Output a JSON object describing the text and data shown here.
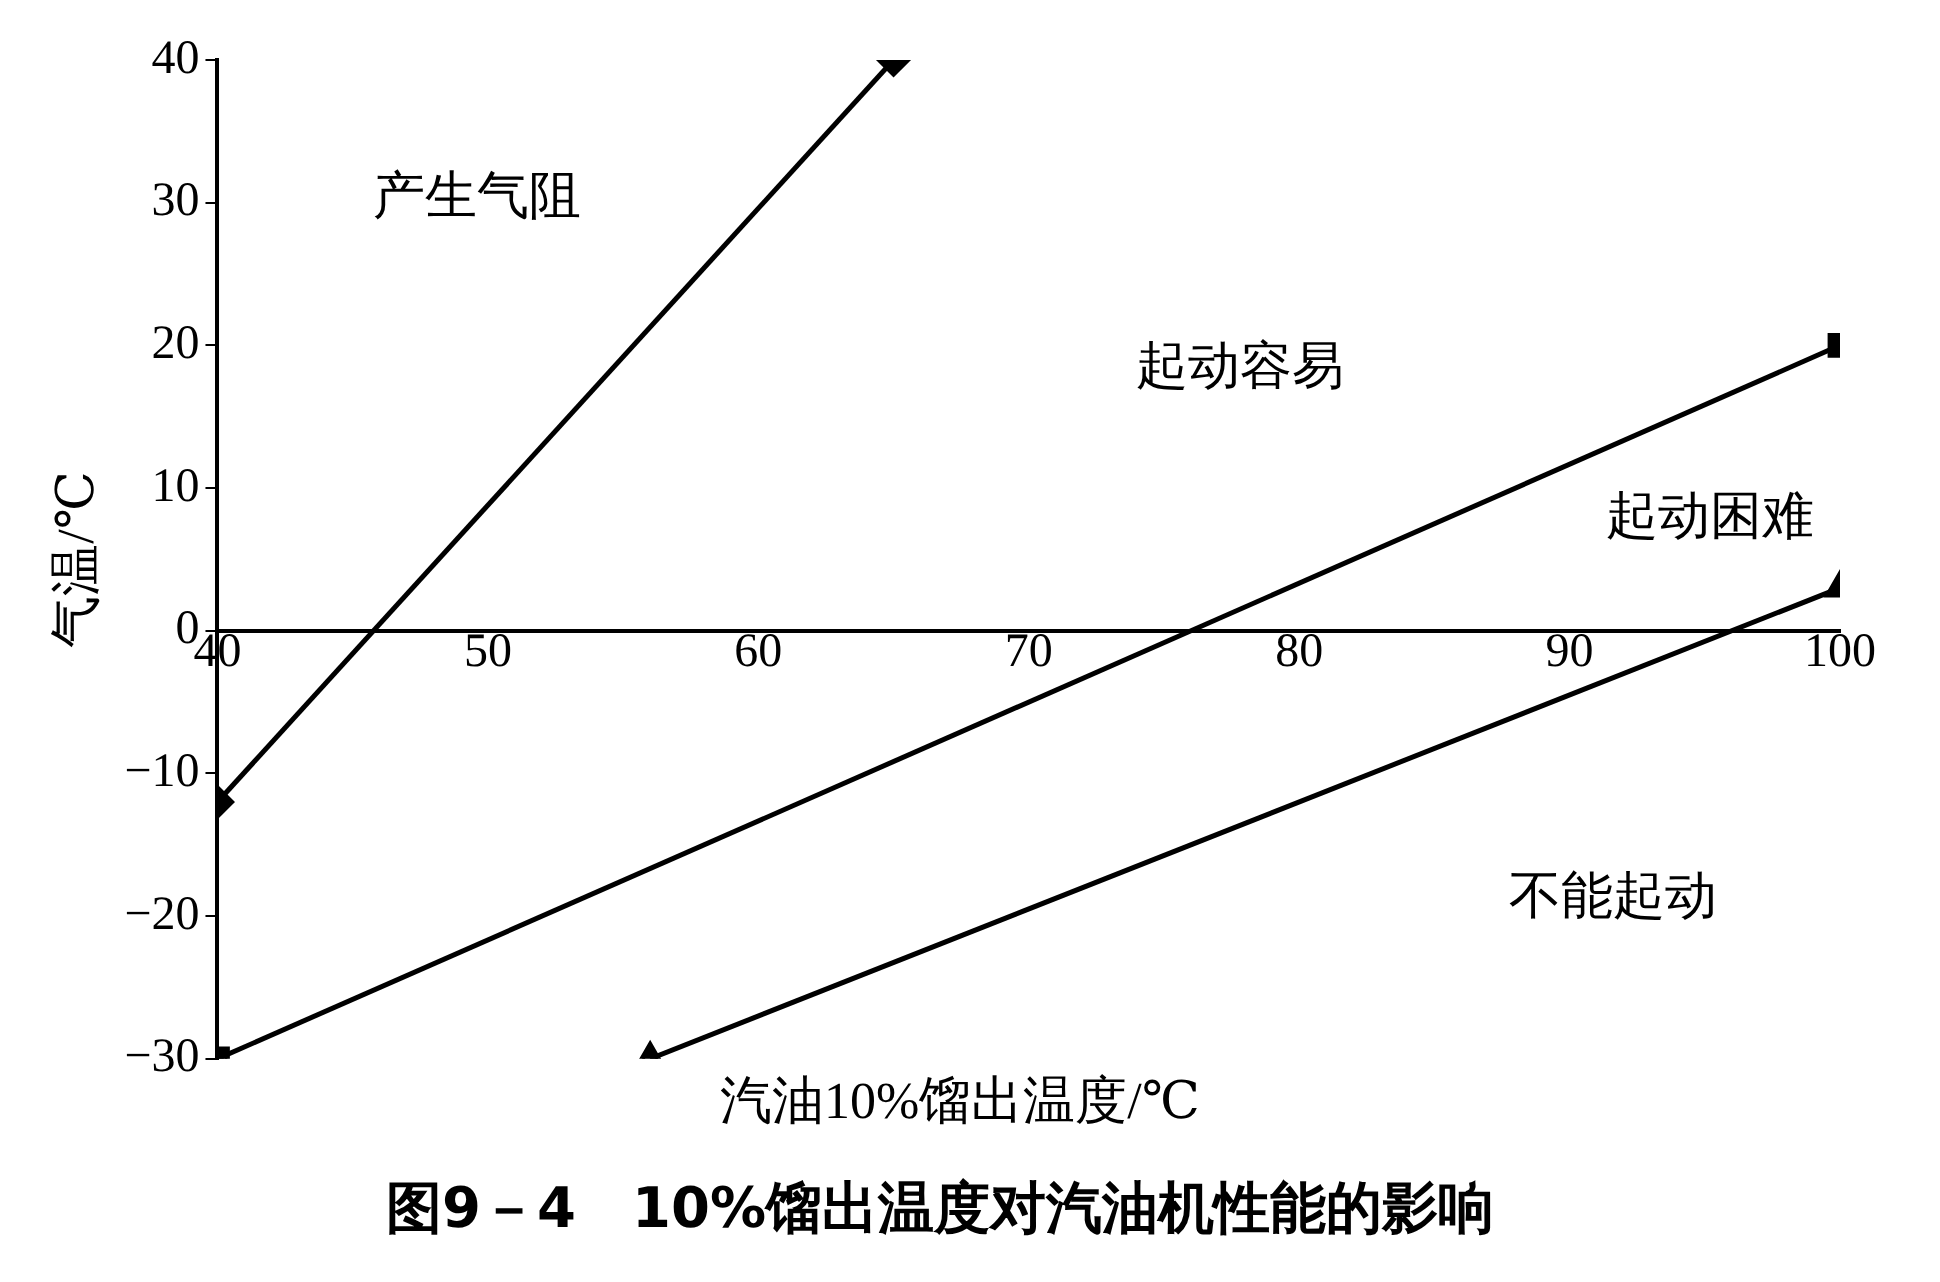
{
  "chart_data": {
    "type": "line",
    "title": "图9－4　10%馏出温度对汽油机性能的影响",
    "xlabel": "汽油10%馏出温度/℃",
    "ylabel": "气温/℃",
    "series": [
      {
        "color": "#000000",
        "marker": "diamond",
        "x": [
          40,
          65
        ],
        "values": [
          -12,
          40
        ]
      },
      {
        "color": "#000000",
        "marker": "square",
        "x": [
          40,
          100
        ],
        "values": [
          -30,
          20
        ]
      },
      {
        "color": "#000000",
        "marker": "triangle",
        "x": [
          56,
          100
        ],
        "values": [
          -30,
          3
        ]
      }
    ],
    "xlim": [
      40,
      100
    ],
    "xticks": [
      40,
      50,
      60,
      70,
      80,
      90,
      100
    ],
    "ylim": [
      -30,
      40
    ],
    "yticks": [
      {
        "value": -30,
        "label": "−30"
      },
      {
        "value": -20,
        "label": "−20"
      },
      {
        "value": -10,
        "label": "−10"
      },
      0,
      10,
      20,
      30,
      40
    ],
    "annotations": [
      "产生气阻",
      "起动容易",
      "起动困难",
      "不能起动"
    ],
    "grid": false,
    "legend": false
  }
}
